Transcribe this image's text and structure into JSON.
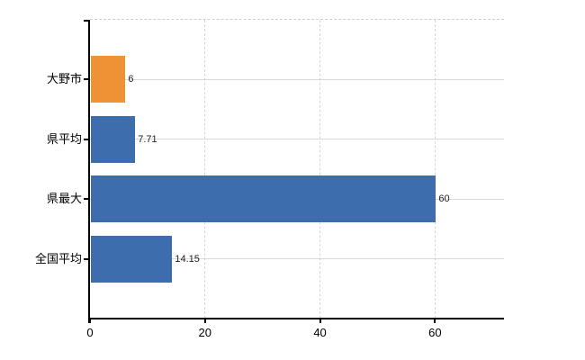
{
  "chart_data": {
    "type": "bar",
    "orientation": "horizontal",
    "title": "",
    "xlabel": "",
    "ylabel": "",
    "categories": [
      "大野市",
      "県平均",
      "県最大",
      "全国平均"
    ],
    "values": [
      6,
      7.71,
      60,
      14.15
    ],
    "value_labels": [
      "6",
      "7.71",
      "60",
      "14.15"
    ],
    "bar_colors": [
      "#EF9236",
      "#3D6DAC",
      "#3D6DAC",
      "#3D6DAC"
    ],
    "x_ticks": [
      0,
      20,
      40,
      60
    ],
    "x_tick_labels": [
      "0",
      "20",
      "40",
      "60"
    ],
    "xlim": [
      0,
      72
    ],
    "legend_position": "none",
    "grid": {
      "vertical": "dashed",
      "horizontal": "solid",
      "top_border": "dashed"
    }
  },
  "colors": {
    "bar_blue": "#3D6DAC",
    "bar_orange": "#EF9236",
    "axis": "#000000",
    "gridline": "#dadada",
    "top_border": "#cfcfcf",
    "text": "#222222",
    "background": "#ffffff"
  }
}
